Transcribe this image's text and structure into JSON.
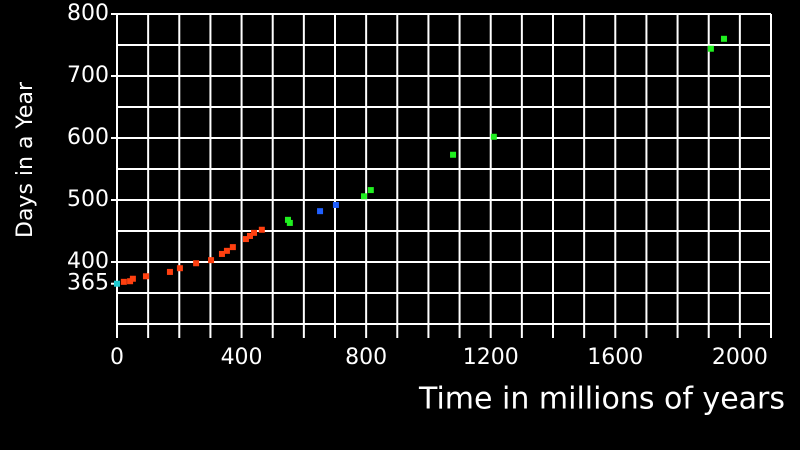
{
  "chart_data": {
    "type": "scatter",
    "y_label": "Days in a Year",
    "x_label": "Time in millions of years",
    "xlim": [
      0,
      2100
    ],
    "ylim": [
      300,
      800
    ],
    "xticks": [
      0,
      400,
      800,
      1200,
      1600,
      2000
    ],
    "yticks": [
      365,
      400,
      500,
      600,
      700,
      800
    ],
    "x_grid": [
      0,
      100,
      200,
      300,
      400,
      500,
      600,
      700,
      800,
      900,
      1000,
      1100,
      1200,
      1300,
      1400,
      1500,
      1600,
      1700,
      1800,
      1900,
      2000,
      2100
    ],
    "y_grid": [
      300,
      350,
      400,
      450,
      500,
      550,
      600,
      650,
      700,
      750,
      800
    ],
    "series": [
      {
        "color": "#1ec8d0",
        "x": [
          0
        ],
        "values": [
          365
        ]
      },
      {
        "color": "#ff4010",
        "x": [
          22,
          42,
          51,
          93,
          170,
          202,
          254,
          302,
          337,
          353,
          372,
          414,
          427,
          440,
          465
        ],
        "values": [
          368,
          369,
          373,
          377,
          384,
          390,
          398,
          403,
          413,
          418,
          424,
          437,
          442,
          447,
          452
        ]
      },
      {
        "color": "#2060ff",
        "x": [
          652,
          703
        ],
        "values": [
          482,
          492
        ]
      },
      {
        "color": "#20f020",
        "x": [
          549,
          555,
          793,
          815,
          1079,
          1210,
          1907,
          1949
        ],
        "values": [
          468,
          463,
          506,
          516,
          573,
          602,
          744,
          760
        ]
      }
    ]
  }
}
